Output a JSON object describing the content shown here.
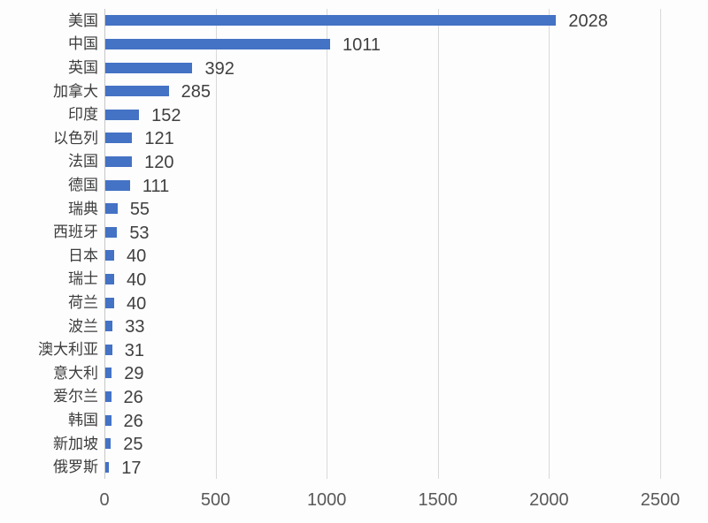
{
  "chart_data": {
    "type": "bar",
    "orientation": "horizontal",
    "title": "",
    "xlabel": "",
    "ylabel": "",
    "categories": [
      "美国",
      "中国",
      "英国",
      "加拿大",
      "印度",
      "以色列",
      "法国",
      "德国",
      "瑞典",
      "西班牙",
      "日本",
      "瑞士",
      "荷兰",
      "波兰",
      "澳大利亚",
      "意大利",
      "爱尔兰",
      "韩国",
      "新加坡",
      "俄罗斯"
    ],
    "values": [
      2028,
      1011,
      392,
      285,
      152,
      121,
      120,
      111,
      55,
      53,
      40,
      40,
      40,
      33,
      31,
      29,
      26,
      26,
      25,
      17
    ],
    "value_labels": [
      "2028",
      "1011",
      "392",
      "285",
      "152",
      "121",
      "120",
      "111",
      "55",
      "53",
      "40",
      "40",
      "40",
      "33",
      "31",
      "29",
      "26",
      "26",
      "25",
      "17"
    ],
    "x_ticks": [
      0,
      500,
      1000,
      1500,
      2000,
      2500
    ],
    "x_tick_labels": [
      "0",
      "500",
      "1000",
      "1500",
      "2000",
      "2500"
    ],
    "xlim": [
      0,
      2500
    ],
    "grid": true,
    "legend": false,
    "data_labels_position": "outside-end",
    "colors": {
      "bar": "#4472c4",
      "gridline": "#d9d9d9",
      "zero_axis": "#c6c6c6",
      "category_label": "#3d3d3d",
      "value_label": "#404040",
      "tick_label": "#595959",
      "background": "#fdfdfd"
    }
  }
}
